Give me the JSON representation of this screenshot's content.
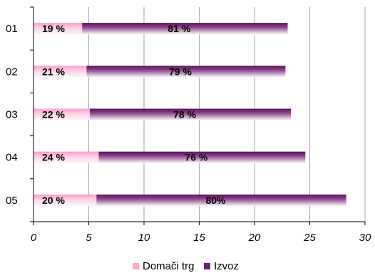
{
  "chart_data": {
    "type": "bar",
    "orientation": "horizontal",
    "stacked": true,
    "categories": [
      "01",
      "02",
      "03",
      "04",
      "05"
    ],
    "series": [
      {
        "name": "Domači trg",
        "values": [
          4.4,
          4.8,
          5.1,
          5.9,
          5.7
        ],
        "labels": [
          "19 %",
          "21 %",
          "22 %",
          "24 %",
          "20 %"
        ],
        "color": "#ffc6e0"
      },
      {
        "name": "Izvoz",
        "values": [
          18.6,
          18.0,
          18.2,
          18.7,
          22.6
        ],
        "labels": [
          "81 %",
          "79 %",
          "78 %",
          "76 %",
          "80%"
        ],
        "color": "#6e1f6e"
      }
    ],
    "x_ticks": [
      "0",
      "5",
      "10",
      "15",
      "20",
      "25",
      "30"
    ],
    "xlim": [
      0,
      30
    ],
    "grid": true,
    "legend_position": "bottom"
  }
}
